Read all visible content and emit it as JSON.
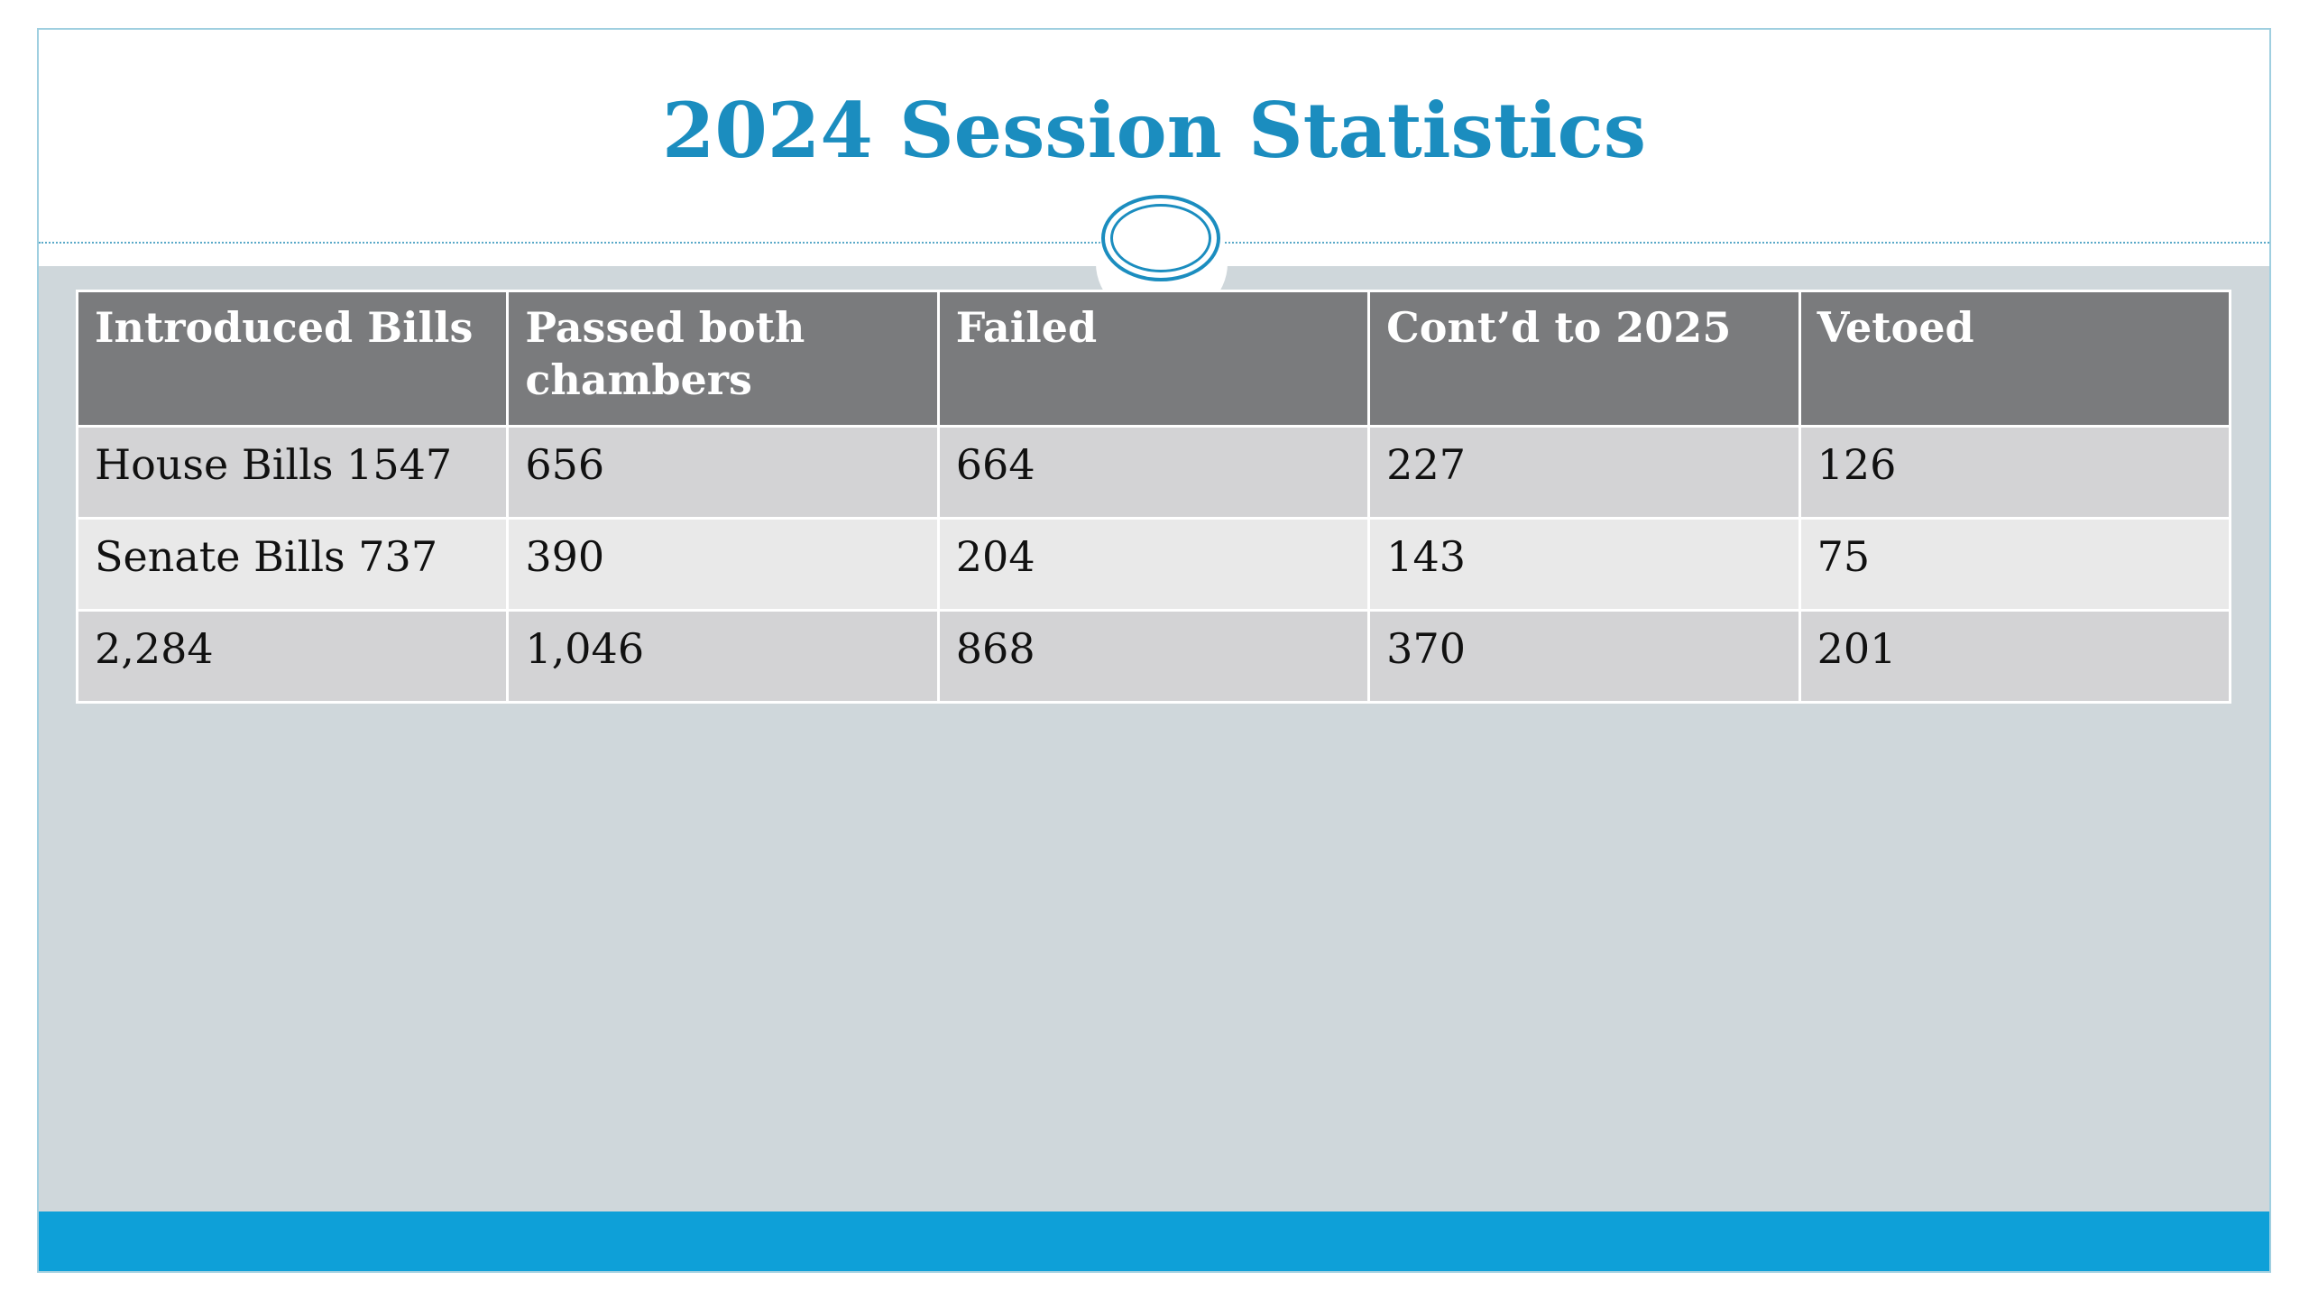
{
  "slide": {
    "title": "2024 Session Statistics"
  },
  "table": {
    "headers": [
      "Introduced Bills",
      "Passed both chambers",
      "Failed",
      "Cont’d to 2025",
      "Vetoed"
    ],
    "rows": [
      [
        "House Bills 1547",
        "656",
        "664",
        "227",
        "126"
      ],
      [
        "Senate Bills 737",
        "390",
        "204",
        "143",
        "75"
      ],
      [
        "2,284",
        "1,046",
        "868",
        "370",
        "201"
      ]
    ]
  },
  "colors": {
    "title": "#1b8dbf",
    "header_bg": "#7a7b7d",
    "row_dark": "#d3d3d5",
    "row_light": "#e9e9e9",
    "content_bg": "#cfd7db",
    "bottom_bar": "#0ea0d8"
  }
}
